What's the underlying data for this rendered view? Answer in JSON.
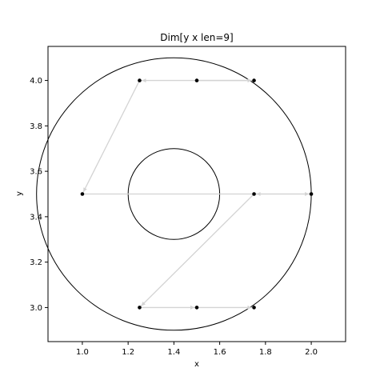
{
  "chart_data": {
    "type": "scatter",
    "title": "Dim[y x len=9]",
    "xlabel": "x",
    "ylabel": "y",
    "xlim": [
      0.85,
      2.15
    ],
    "ylim": [
      2.85,
      4.15
    ],
    "grid": false,
    "x_ticks": [
      "1.0",
      "1.2",
      "1.4",
      "1.6",
      "1.8",
      "2.0"
    ],
    "y_ticks": [
      "3.0",
      "3.2",
      "3.4",
      "3.6",
      "3.8",
      "4.0"
    ],
    "points": [
      {
        "x": 1.25,
        "y": 4.0
      },
      {
        "x": 1.5,
        "y": 4.0
      },
      {
        "x": 1.75,
        "y": 4.0
      },
      {
        "x": 1.0,
        "y": 3.5
      },
      {
        "x": 1.75,
        "y": 3.5
      },
      {
        "x": 2.0,
        "y": 3.5
      },
      {
        "x": 1.25,
        "y": 3.0
      },
      {
        "x": 1.5,
        "y": 3.0
      },
      {
        "x": 1.75,
        "y": 3.0
      }
    ],
    "path_order": [
      1,
      2,
      0,
      3,
      5,
      4,
      6,
      7,
      8
    ],
    "path_color": "#d3d3d3",
    "point_color": "#000000",
    "circles": [
      {
        "cx": 1.4,
        "cy": 3.5,
        "r": 0.6
      },
      {
        "cx": 1.4,
        "cy": 3.5,
        "r": 0.2
      }
    ]
  }
}
